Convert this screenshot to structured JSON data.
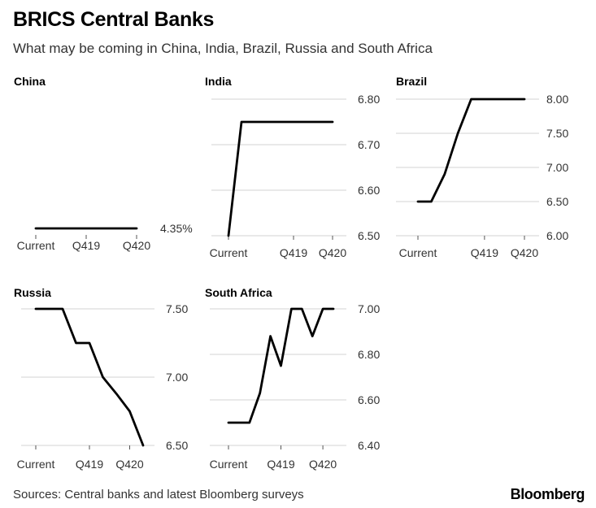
{
  "header": {
    "title": "BRICS Central Banks",
    "subtitle": "What may be coming in China, India, Brazil, Russia and South Africa"
  },
  "footer": {
    "source": "Sources: Central banks and latest Bloomberg surveys",
    "logo": "Bloomberg"
  },
  "chart_data": [
    {
      "type": "line",
      "title": "China",
      "categories": [
        "Current",
        "Q419",
        "Q420"
      ],
      "x": [
        0,
        1,
        2,
        3,
        4,
        5,
        6,
        7,
        8
      ],
      "series": [
        {
          "values": [
            4.35,
            4.35,
            4.35,
            4.35,
            4.35,
            4.35,
            4.35,
            4.35,
            4.35
          ]
        }
      ],
      "category_index": [
        0,
        4,
        8
      ],
      "yticks": [],
      "value_label": "4.35%",
      "grid": false
    },
    {
      "type": "line",
      "title": "India",
      "categories": [
        "Current",
        "Q419",
        "Q420"
      ],
      "x": [
        0,
        1,
        2,
        3,
        4,
        5,
        6,
        7,
        8
      ],
      "series": [
        {
          "values": [
            6.5,
            6.75,
            6.75,
            6.75,
            6.75,
            6.75,
            6.75,
            6.75,
            6.75
          ]
        }
      ],
      "category_index": [
        0,
        5,
        8
      ],
      "ylim": [
        6.5,
        6.8
      ],
      "yticks": [
        "6.80",
        "6.70",
        "6.60",
        "6.50"
      ],
      "grid": true
    },
    {
      "type": "line",
      "title": "Brazil",
      "categories": [
        "Current",
        "Q419",
        "Q420"
      ],
      "x": [
        0,
        1,
        2,
        3,
        4,
        5,
        6,
        7,
        8
      ],
      "series": [
        {
          "values": [
            6.5,
            6.5,
            6.9,
            7.5,
            8.0,
            8.0,
            8.0,
            8.0,
            8.0
          ]
        }
      ],
      "category_index": [
        0,
        5,
        8
      ],
      "ylim": [
        6.0,
        8.0
      ],
      "yticks": [
        "8.00",
        "7.50",
        "7.00",
        "6.50",
        "6.00"
      ],
      "grid": true
    },
    {
      "type": "line",
      "title": "Russia",
      "categories": [
        "Current",
        "Q419",
        "Q420"
      ],
      "x": [
        0,
        1,
        2,
        3,
        4,
        5,
        6,
        7,
        8
      ],
      "series": [
        {
          "values": [
            7.5,
            7.5,
            7.5,
            7.25,
            7.25,
            7.0,
            6.88,
            6.75,
            6.5
          ]
        }
      ],
      "category_index": [
        0,
        4,
        7
      ],
      "ylim": [
        6.5,
        7.5
      ],
      "yticks": [
        "7.50",
        "7.00",
        "6.50"
      ],
      "grid": true
    },
    {
      "type": "line",
      "title": "South Africa",
      "categories": [
        "Current",
        "Q419",
        "Q420"
      ],
      "x": [
        0,
        1,
        2,
        3,
        4,
        5,
        6,
        7,
        8,
        9,
        10
      ],
      "series": [
        {
          "values": [
            6.5,
            6.5,
            6.5,
            6.63,
            6.88,
            6.75,
            7.0,
            7.0,
            6.88,
            7.0,
            7.0
          ]
        }
      ],
      "category_index": [
        0,
        5,
        9
      ],
      "ylim": [
        6.4,
        7.0
      ],
      "yticks": [
        "7.00",
        "6.80",
        "6.60",
        "6.40"
      ],
      "grid": true
    }
  ]
}
